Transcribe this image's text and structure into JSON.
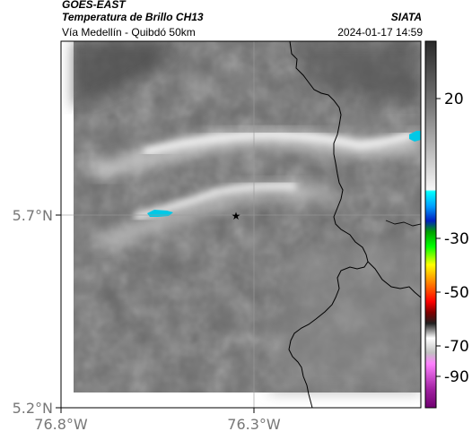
{
  "header": {
    "satellite": "GOES-EAST",
    "product": "Temperatura de Brillo CH13",
    "route": "Vía Medellín - Quibdó 50km",
    "agency": "SIATA",
    "datetime": "2024-01-17 14:59"
  },
  "map": {
    "lat_ticks": [
      {
        "label": "5.7°N",
        "value": 5.7
      },
      {
        "label": "5.2°N",
        "value": 5.2
      }
    ],
    "lon_ticks": [
      {
        "label": "76.8°W",
        "value": -76.8
      },
      {
        "label": "76.3°W",
        "value": -76.3
      }
    ],
    "marker": {
      "symbol": "★",
      "name": "location-star"
    },
    "cold_cloud_color": "#00c8e6",
    "border_color": "#000000"
  },
  "colorbar": {
    "ticks": [
      {
        "label": "20",
        "value": 20
      },
      {
        "label": "-30",
        "value": -30
      },
      {
        "label": "-50",
        "value": -50
      },
      {
        "label": "-70",
        "value": -70
      },
      {
        "label": "-90",
        "value": -90
      }
    ]
  }
}
